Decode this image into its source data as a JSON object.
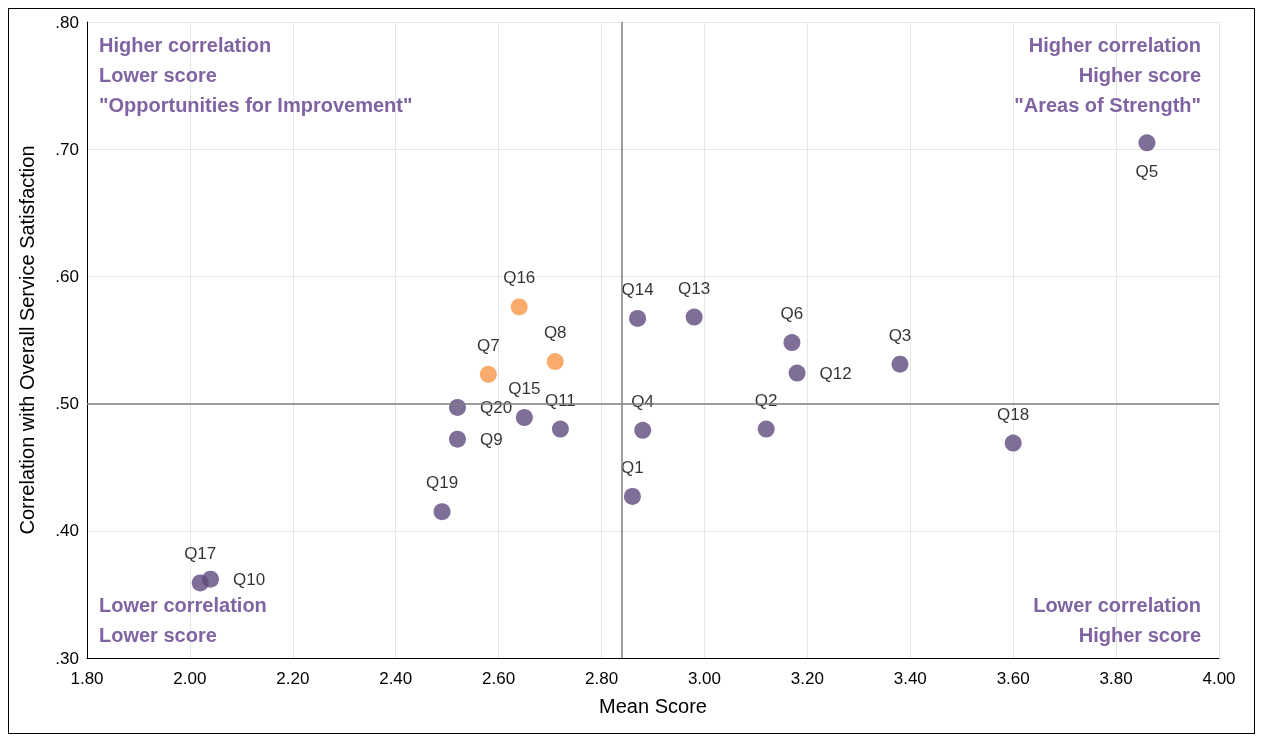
{
  "chart_data": {
    "type": "scatter",
    "xlabel": "Mean Score",
    "ylabel": "Correlation with Overall Service Satisfaction",
    "x": [
      2.86,
      3.12,
      3.38,
      2.88,
      3.86,
      3.17,
      2.58,
      2.71,
      2.52,
      2.04,
      2.72,
      3.18,
      2.98,
      2.87,
      2.65,
      2.64,
      2.02,
      3.6,
      2.49,
      2.52
    ],
    "values": [
      0.427,
      0.48,
      0.531,
      0.479,
      0.705,
      0.548,
      0.523,
      0.533,
      0.472,
      0.362,
      0.48,
      0.524,
      0.568,
      0.567,
      0.489,
      0.576,
      0.359,
      0.469,
      0.415,
      0.497
    ],
    "value_labels": [
      "Q1",
      "Q2",
      "Q3",
      "Q4",
      "Q5",
      "Q6",
      "Q7",
      "Q8",
      "Q9",
      "Q10",
      "Q11",
      "Q12",
      "Q13",
      "Q14",
      "Q15",
      "Q16",
      "Q17",
      "Q18",
      "Q19",
      "Q20"
    ],
    "colors": [
      "#5f4b7e",
      "#5f4b7e",
      "#5f4b7e",
      "#5f4b7e",
      "#5f4b7e",
      "#5f4b7e",
      "#f79646",
      "#f79646",
      "#5f4b7e",
      "#5f4b7e",
      "#5f4b7e",
      "#5f4b7e",
      "#5f4b7e",
      "#5f4b7e",
      "#5f4b7e",
      "#f79646",
      "#5f4b7e",
      "#5f4b7e",
      "#5f4b7e",
      "#5f4b7e"
    ],
    "marker": "circle",
    "xlim": [
      1.8,
      4.0
    ],
    "xticks": [
      {
        "value": 1.8,
        "label": "1.80"
      },
      {
        "value": 2.0,
        "label": "2.00"
      },
      {
        "value": 2.2,
        "label": "2.20"
      },
      {
        "value": 2.4,
        "label": "2.40"
      },
      {
        "value": 2.6,
        "label": "2.60"
      },
      {
        "value": 2.8,
        "label": "2.80"
      },
      {
        "value": 3.0,
        "label": "3.00"
      },
      {
        "value": 3.2,
        "label": "3.20"
      },
      {
        "value": 3.4,
        "label": "3.40"
      },
      {
        "value": 3.6,
        "label": "3.60"
      },
      {
        "value": 3.8,
        "label": "3.80"
      },
      {
        "value": 4.0,
        "label": "4.00"
      }
    ],
    "ylim": [
      0.3,
      0.8
    ],
    "yticks": [
      {
        "value": 0.3,
        "label": ".30"
      },
      {
        "value": 0.4,
        "label": ".40"
      },
      {
        "value": 0.5,
        "label": ".50"
      },
      {
        "value": 0.6,
        "label": ".60"
      },
      {
        "value": 0.7,
        "label": ".70"
      },
      {
        "value": 0.8,
        "label": ".80"
      }
    ],
    "grid": true,
    "ref_lines": [
      {
        "axis": "x",
        "value": 2.84,
        "color": "#808080"
      },
      {
        "axis": "y",
        "value": 0.5,
        "color": "#808080"
      }
    ],
    "annotations": [
      "Higher correlation\nLower score\n\"Opportunities for Improvement\"",
      "Higher correlation\nHigher score\n\"Areas of Strength\"",
      "Lower correlation\nLower score",
      "Lower correlation\nHigher score"
    ]
  }
}
